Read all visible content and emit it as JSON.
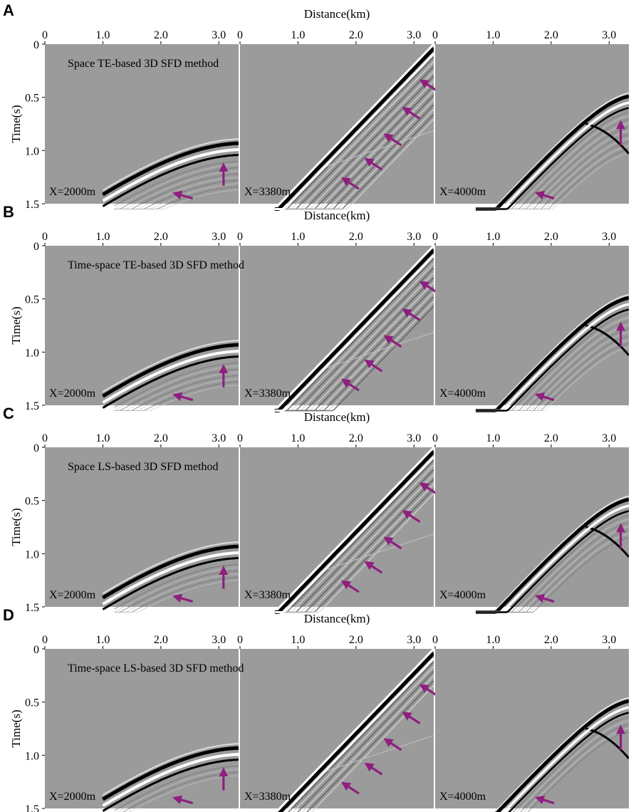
{
  "figure": {
    "distance_label": "Distance(km)",
    "time_label": "Time(s)",
    "x_tick_labels": [
      [
        "0",
        "1.0",
        "2.0",
        "3.0"
      ],
      [
        "0",
        "1.0",
        "2.0",
        "3.0"
      ],
      [
        "0",
        "1.0",
        "2.0",
        "3.0"
      ]
    ],
    "x_ticks_km": [
      [
        0,
        1.0,
        2.0,
        3.0
      ],
      [
        0,
        1.0,
        2.0,
        3.0
      ],
      [
        0,
        1.0,
        2.0,
        3.0
      ]
    ],
    "y_tick_labels": [
      "0",
      "0.5",
      "1.0",
      "1.5"
    ],
    "y_ticks_s": [
      0,
      0.5,
      1.0,
      1.5
    ],
    "x_range_km": [
      0,
      3.34
    ],
    "y_range_s": [
      0,
      1.5
    ],
    "y_axis_reversed": true,
    "slice_labels": [
      "X=2000m",
      "X=3380m",
      "X=4000m"
    ],
    "background_color": "#9b9b9b",
    "arrow_color": "#8e1f7f"
  },
  "rows": [
    {
      "letter": "A",
      "method": "Space TE-based 3D SFD method",
      "dispersion": 1.0
    },
    {
      "letter": "B",
      "method": "Time-space TE-based 3D SFD method",
      "dispersion": 0.8
    },
    {
      "letter": "C",
      "method": "Space LS-based 3D SFD method",
      "dispersion": 0.55
    },
    {
      "letter": "D",
      "method": "Time-space LS-based 3D SFD method",
      "dispersion": 0.4
    }
  ]
}
